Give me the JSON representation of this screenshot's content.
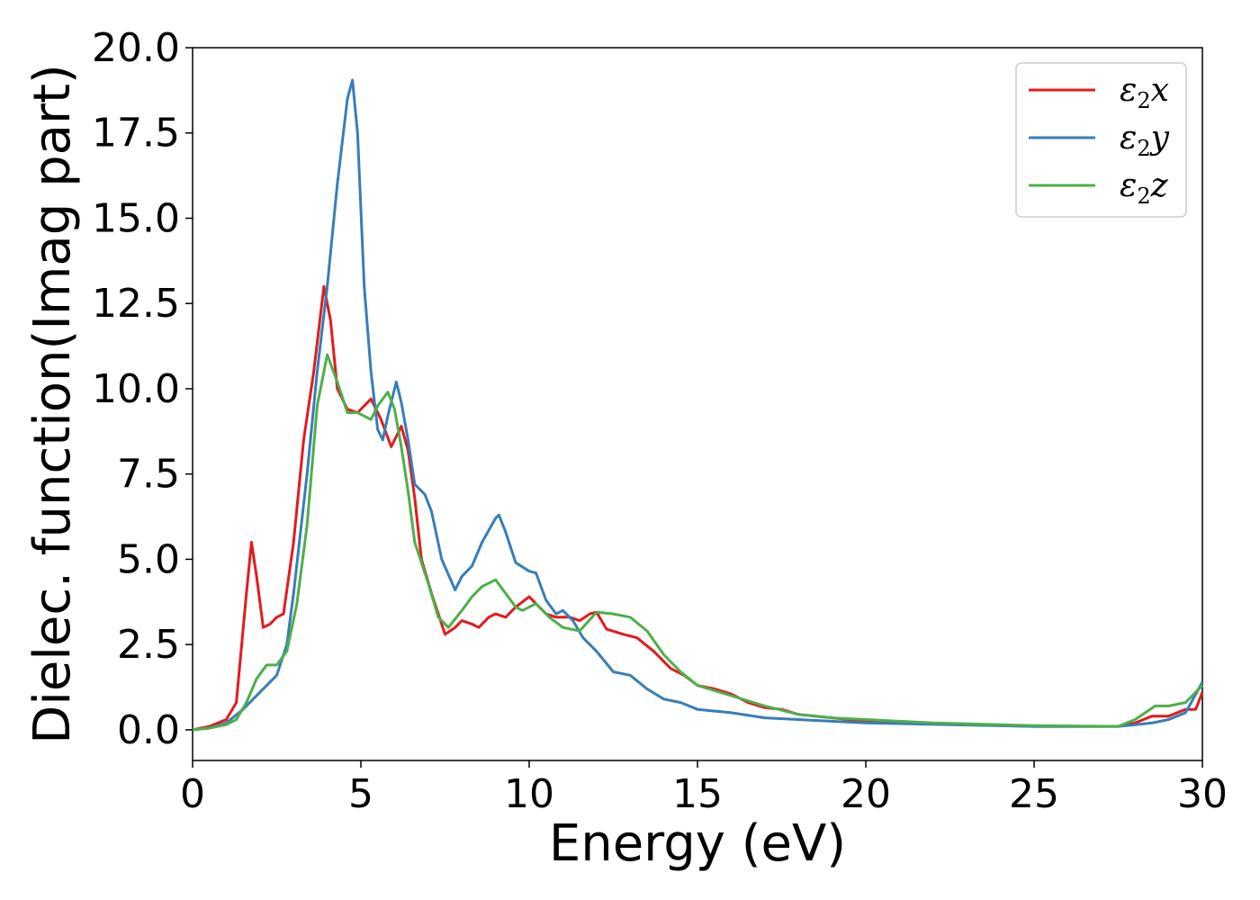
{
  "chart_data": {
    "type": "line",
    "xlabel": "Energy (eV)",
    "ylabel": "Dielec. function(Imag part)",
    "xlim": [
      0,
      30
    ],
    "ylim": [
      -0.9,
      20.0
    ],
    "xticks": [
      0,
      5,
      10,
      15,
      20,
      25,
      30
    ],
    "xtick_labels": [
      "0",
      "5",
      "10",
      "15",
      "20",
      "25",
      "30"
    ],
    "yticks": [
      0.0,
      2.5,
      5.0,
      7.5,
      10.0,
      12.5,
      15.0,
      17.5,
      20.0
    ],
    "ytick_labels": [
      "0.0",
      "2.5",
      "5.0",
      "7.5",
      "10.0",
      "12.5",
      "15.0",
      "17.5",
      "20.0"
    ],
    "grid": false,
    "legend_position": "top-right",
    "series": [
      {
        "name": "ε2x",
        "legend": {
          "main": "ε",
          "sub": "2",
          "suffix": "x"
        },
        "color": "#e41a1c",
        "points": [
          [
            0,
            0
          ],
          [
            0.5,
            0.1
          ],
          [
            1.0,
            0.3
          ],
          [
            1.3,
            0.8
          ],
          [
            1.6,
            4.0
          ],
          [
            1.75,
            5.5
          ],
          [
            1.9,
            4.5
          ],
          [
            2.1,
            3.0
          ],
          [
            2.3,
            3.1
          ],
          [
            2.5,
            3.3
          ],
          [
            2.7,
            3.4
          ],
          [
            3.0,
            5.5
          ],
          [
            3.3,
            8.5
          ],
          [
            3.6,
            10.5
          ],
          [
            3.9,
            13.0
          ],
          [
            4.1,
            12.0
          ],
          [
            4.3,
            10.0
          ],
          [
            4.6,
            9.4
          ],
          [
            4.9,
            9.3
          ],
          [
            5.3,
            9.7
          ],
          [
            5.6,
            9.1
          ],
          [
            5.9,
            8.3
          ],
          [
            6.2,
            8.9
          ],
          [
            6.4,
            8.2
          ],
          [
            6.6,
            6.8
          ],
          [
            6.8,
            5.0
          ],
          [
            7.1,
            4.0
          ],
          [
            7.5,
            2.8
          ],
          [
            7.8,
            3.0
          ],
          [
            8.0,
            3.2
          ],
          [
            8.3,
            3.1
          ],
          [
            8.5,
            3.0
          ],
          [
            8.8,
            3.3
          ],
          [
            9.0,
            3.4
          ],
          [
            9.3,
            3.3
          ],
          [
            9.6,
            3.6
          ],
          [
            10.0,
            3.9
          ],
          [
            10.2,
            3.7
          ],
          [
            10.5,
            3.4
          ],
          [
            10.8,
            3.3
          ],
          [
            11.2,
            3.3
          ],
          [
            11.5,
            3.2
          ],
          [
            11.8,
            3.4
          ],
          [
            12.0,
            3.45
          ],
          [
            12.3,
            2.95
          ],
          [
            12.8,
            2.8
          ],
          [
            13.2,
            2.7
          ],
          [
            13.7,
            2.3
          ],
          [
            14.2,
            1.8
          ],
          [
            14.6,
            1.6
          ],
          [
            15.0,
            1.3
          ],
          [
            15.5,
            1.2
          ],
          [
            16.0,
            1.05
          ],
          [
            16.5,
            0.8
          ],
          [
            17.0,
            0.65
          ],
          [
            17.5,
            0.6
          ],
          [
            18.0,
            0.45
          ],
          [
            19.0,
            0.35
          ],
          [
            20.0,
            0.25
          ],
          [
            22.0,
            0.18
          ],
          [
            25.0,
            0.1
          ],
          [
            27.5,
            0.1
          ],
          [
            28.0,
            0.2
          ],
          [
            28.5,
            0.4
          ],
          [
            29.0,
            0.4
          ],
          [
            29.5,
            0.6
          ],
          [
            29.8,
            0.6
          ],
          [
            30.0,
            1.1
          ]
        ]
      },
      {
        "name": "ε2y",
        "legend": {
          "main": "ε",
          "sub": "2",
          "suffix": "y"
        },
        "color": "#377eb8",
        "points": [
          [
            0,
            0
          ],
          [
            0.5,
            0.05
          ],
          [
            1.0,
            0.2
          ],
          [
            1.5,
            0.6
          ],
          [
            2.0,
            1.1
          ],
          [
            2.5,
            1.6
          ],
          [
            2.8,
            2.5
          ],
          [
            3.0,
            4.0
          ],
          [
            3.4,
            7.5
          ],
          [
            3.7,
            10.5
          ],
          [
            4.0,
            13.0
          ],
          [
            4.3,
            16.0
          ],
          [
            4.6,
            18.5
          ],
          [
            4.75,
            19.05
          ],
          [
            4.9,
            17.5
          ],
          [
            5.1,
            13.0
          ],
          [
            5.3,
            10.5
          ],
          [
            5.5,
            8.8
          ],
          [
            5.65,
            8.5
          ],
          [
            5.8,
            9.2
          ],
          [
            6.05,
            10.2
          ],
          [
            6.2,
            9.6
          ],
          [
            6.4,
            8.5
          ],
          [
            6.6,
            7.2
          ],
          [
            6.9,
            6.9
          ],
          [
            7.1,
            6.4
          ],
          [
            7.4,
            5.0
          ],
          [
            7.8,
            4.1
          ],
          [
            8.0,
            4.5
          ],
          [
            8.3,
            4.8
          ],
          [
            8.6,
            5.5
          ],
          [
            9.0,
            6.2
          ],
          [
            9.1,
            6.3
          ],
          [
            9.3,
            5.8
          ],
          [
            9.6,
            4.9
          ],
          [
            10.0,
            4.65
          ],
          [
            10.2,
            4.6
          ],
          [
            10.5,
            3.8
          ],
          [
            10.8,
            3.4
          ],
          [
            11.0,
            3.5
          ],
          [
            11.3,
            3.2
          ],
          [
            11.6,
            2.7
          ],
          [
            12.0,
            2.3
          ],
          [
            12.5,
            1.7
          ],
          [
            13.0,
            1.6
          ],
          [
            13.5,
            1.2
          ],
          [
            14.0,
            0.9
          ],
          [
            14.5,
            0.8
          ],
          [
            15.0,
            0.6
          ],
          [
            16.0,
            0.5
          ],
          [
            17.0,
            0.35
          ],
          [
            18.0,
            0.3
          ],
          [
            20.0,
            0.2
          ],
          [
            25.0,
            0.1
          ],
          [
            27.5,
            0.1
          ],
          [
            28.5,
            0.2
          ],
          [
            29.0,
            0.3
          ],
          [
            29.5,
            0.5
          ],
          [
            30.0,
            1.4
          ]
        ]
      },
      {
        "name": "ε2z",
        "legend": {
          "main": "ε",
          "sub": "2",
          "suffix": "z"
        },
        "color": "#4daf4a",
        "points": [
          [
            0,
            0
          ],
          [
            0.5,
            0.05
          ],
          [
            1.0,
            0.15
          ],
          [
            1.3,
            0.3
          ],
          [
            1.6,
            0.8
          ],
          [
            1.9,
            1.5
          ],
          [
            2.2,
            1.9
          ],
          [
            2.5,
            1.9
          ],
          [
            2.8,
            2.3
          ],
          [
            3.1,
            3.7
          ],
          [
            3.4,
            6.0
          ],
          [
            3.7,
            9.5
          ],
          [
            4.0,
            11.0
          ],
          [
            4.3,
            10.2
          ],
          [
            4.6,
            9.3
          ],
          [
            4.9,
            9.3
          ],
          [
            5.1,
            9.2
          ],
          [
            5.3,
            9.1
          ],
          [
            5.5,
            9.5
          ],
          [
            5.8,
            9.9
          ],
          [
            6.0,
            9.4
          ],
          [
            6.2,
            8.3
          ],
          [
            6.4,
            7.0
          ],
          [
            6.6,
            5.5
          ],
          [
            7.0,
            4.3
          ],
          [
            7.3,
            3.3
          ],
          [
            7.6,
            3.0
          ],
          [
            8.0,
            3.5
          ],
          [
            8.3,
            3.9
          ],
          [
            8.6,
            4.2
          ],
          [
            9.0,
            4.4
          ],
          [
            9.3,
            4.0
          ],
          [
            9.6,
            3.6
          ],
          [
            9.8,
            3.5
          ],
          [
            10.2,
            3.7
          ],
          [
            10.6,
            3.3
          ],
          [
            11.0,
            3.0
          ],
          [
            11.5,
            2.9
          ],
          [
            12.0,
            3.45
          ],
          [
            12.5,
            3.4
          ],
          [
            13.0,
            3.3
          ],
          [
            13.5,
            2.9
          ],
          [
            14.0,
            2.2
          ],
          [
            14.5,
            1.7
          ],
          [
            15.0,
            1.3
          ],
          [
            16.0,
            1.0
          ],
          [
            17.0,
            0.7
          ],
          [
            18.0,
            0.45
          ],
          [
            19.0,
            0.35
          ],
          [
            20.0,
            0.3
          ],
          [
            22.0,
            0.2
          ],
          [
            25.0,
            0.12
          ],
          [
            27.5,
            0.1
          ],
          [
            28.0,
            0.3
          ],
          [
            28.6,
            0.7
          ],
          [
            29.0,
            0.7
          ],
          [
            29.5,
            0.8
          ],
          [
            30.0,
            1.3
          ]
        ]
      }
    ]
  }
}
